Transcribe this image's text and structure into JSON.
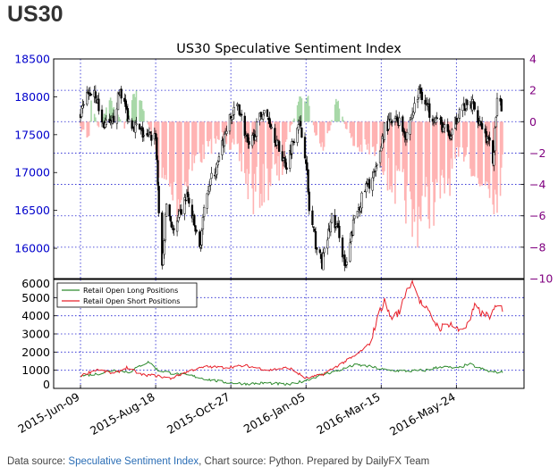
{
  "page": {
    "heading": "US30",
    "footer": {
      "prefix": "Data source: ",
      "link1": "Speculative Sentiment Index",
      "middle": ", Chart source: Python. Prepared by DailyFX Team"
    }
  },
  "colors": {
    "price_up": "#ffffff",
    "price_down": "#000000",
    "positive_ssi": "#a8d8a8",
    "negative_ssi": "#ffb3b3",
    "long_line": "#2e8b2e",
    "short_line": "#e8202a",
    "grid": "#1f1fd0",
    "left_axis_text": "#0000cc",
    "right_axis_text": "#800080"
  },
  "chart_data": [
    {
      "type": "candlestick",
      "title": "US30 Speculative Sentiment Index",
      "y_left": {
        "ticks": [
          16000,
          16500,
          17000,
          17500,
          18000,
          18500
        ],
        "range": [
          15600,
          18500
        ]
      },
      "y_right": {
        "ticks": [
          -10,
          -8,
          -6,
          -4,
          -2,
          0,
          2,
          4
        ],
        "range": [
          -10,
          4
        ]
      },
      "x_range": [
        "2015-05-15",
        "2016-07-26"
      ],
      "x_ticks": [
        "2015-Jun-09",
        "2015-Aug-18",
        "2015-Oct-27",
        "2016-Jan-05",
        "2016-Mar-15",
        "2016-May-24"
      ],
      "grid": true,
      "price_anchors": [
        [
          "2015-06-09",
          17750
        ],
        [
          "2015-06-15",
          18000
        ],
        [
          "2015-06-22",
          18100
        ],
        [
          "2015-06-29",
          17650
        ],
        [
          "2015-07-08",
          17600
        ],
        [
          "2015-07-16",
          18100
        ],
        [
          "2015-07-24",
          17700
        ],
        [
          "2015-08-03",
          17550
        ],
        [
          "2015-08-10",
          17450
        ],
        [
          "2015-08-18",
          17500
        ],
        [
          "2015-08-21",
          16500
        ],
        [
          "2015-08-24",
          15700
        ],
        [
          "2015-08-28",
          16600
        ],
        [
          "2015-09-04",
          16200
        ],
        [
          "2015-09-16",
          16700
        ],
        [
          "2015-09-28",
          16000
        ],
        [
          "2015-10-05",
          16800
        ],
        [
          "2015-10-15",
          17100
        ],
        [
          "2015-10-23",
          17600
        ],
        [
          "2015-11-03",
          17900
        ],
        [
          "2015-11-13",
          17300
        ],
        [
          "2015-11-25",
          17800
        ],
        [
          "2015-12-02",
          17700
        ],
        [
          "2015-12-11",
          17300
        ],
        [
          "2015-12-18",
          17100
        ],
        [
          "2015-12-29",
          17700
        ],
        [
          "2016-01-05",
          17200
        ],
        [
          "2016-01-08",
          16500
        ],
        [
          "2016-01-15",
          16000
        ],
        [
          "2016-01-20",
          15800
        ],
        [
          "2016-01-29",
          16400
        ],
        [
          "2016-02-05",
          16200
        ],
        [
          "2016-02-11",
          15700
        ],
        [
          "2016-02-19",
          16400
        ],
        [
          "2016-03-01",
          16800
        ],
        [
          "2016-03-10",
          17000
        ],
        [
          "2016-03-18",
          17600
        ],
        [
          "2016-03-31",
          17700
        ],
        [
          "2016-04-07",
          17500
        ],
        [
          "2016-04-20",
          18100
        ],
        [
          "2016-04-29",
          17800
        ],
        [
          "2016-05-06",
          17700
        ],
        [
          "2016-05-19",
          17450
        ],
        [
          "2016-05-27",
          17850
        ],
        [
          "2016-06-08",
          17900
        ],
        [
          "2016-06-16",
          17650
        ],
        [
          "2016-06-24",
          17350
        ],
        [
          "2016-06-27",
          17150
        ],
        [
          "2016-07-01",
          17900
        ],
        [
          "2016-07-05",
          17850
        ]
      ],
      "ssi_anchors": [
        [
          "2015-06-09",
          -0.5
        ],
        [
          "2015-06-17",
          -1.2
        ],
        [
          "2015-06-19",
          1.3
        ],
        [
          "2015-06-26",
          -0.5
        ],
        [
          "2015-07-06",
          1.5
        ],
        [
          "2015-07-10",
          1.0
        ],
        [
          "2015-07-20",
          -0.4
        ],
        [
          "2015-07-28",
          2.1
        ],
        [
          "2015-08-06",
          1.1
        ],
        [
          "2015-08-14",
          -1.0
        ],
        [
          "2015-08-25",
          -4.5
        ],
        [
          "2015-09-08",
          -6.0
        ],
        [
          "2015-09-22",
          -3.0
        ],
        [
          "2015-10-06",
          -2.0
        ],
        [
          "2015-10-20",
          -1.0
        ],
        [
          "2015-11-03",
          -2.5
        ],
        [
          "2015-11-16",
          -5.5
        ],
        [
          "2015-11-30",
          -4.5
        ],
        [
          "2015-12-14",
          -3.5
        ],
        [
          "2015-12-21",
          -0.6
        ],
        [
          "2015-12-30",
          1.4
        ],
        [
          "2016-01-07",
          1.5
        ],
        [
          "2016-01-14",
          -1.0
        ],
        [
          "2016-01-22",
          -2.0
        ],
        [
          "2016-02-03",
          1.6
        ],
        [
          "2016-02-11",
          -0.4
        ],
        [
          "2016-02-19",
          -1.8
        ],
        [
          "2016-03-01",
          -2.0
        ],
        [
          "2016-03-14",
          -2.5
        ],
        [
          "2016-03-24",
          -4.5
        ],
        [
          "2016-04-06",
          -5.5
        ],
        [
          "2016-04-14",
          -8.0
        ],
        [
          "2016-04-22",
          -6.0
        ],
        [
          "2016-05-04",
          -6.0
        ],
        [
          "2016-05-16",
          -4.5
        ],
        [
          "2016-05-24",
          -3.0
        ],
        [
          "2016-06-03",
          -2.0
        ],
        [
          "2016-06-14",
          -5.0
        ],
        [
          "2016-06-21",
          -4.0
        ],
        [
          "2016-06-30",
          -5.5
        ],
        [
          "2016-07-06",
          -3.5
        ]
      ]
    },
    {
      "type": "line",
      "y_range": [
        0,
        6000
      ],
      "y_ticks": [
        0,
        1000,
        2000,
        3000,
        4000,
        5000,
        6000
      ],
      "x_ticks": [
        "2015-Jun-09",
        "2015-Aug-18",
        "2015-Oct-27",
        "2016-Jan-05",
        "2016-Mar-15",
        "2016-May-24"
      ],
      "grid": true,
      "legend_position": "top-left",
      "series": [
        {
          "name": "Retail Open Long Positions",
          "points": [
            [
              "2015-06-09",
              700
            ],
            [
              "2015-06-25",
              800
            ],
            [
              "2015-07-10",
              1000
            ],
            [
              "2015-07-25",
              900
            ],
            [
              "2015-08-05",
              1300
            ],
            [
              "2015-08-12",
              1450
            ],
            [
              "2015-08-20",
              1000
            ],
            [
              "2015-09-05",
              800
            ],
            [
              "2015-09-20",
              700
            ],
            [
              "2015-10-05",
              500
            ],
            [
              "2015-10-20",
              350
            ],
            [
              "2015-11-10",
              250
            ],
            [
              "2015-12-01",
              300
            ],
            [
              "2015-12-20",
              200
            ],
            [
              "2016-01-05",
              450
            ],
            [
              "2016-01-20",
              750
            ],
            [
              "2016-02-05",
              1000
            ],
            [
              "2016-02-20",
              1300
            ],
            [
              "2016-03-05",
              1200
            ],
            [
              "2016-03-20",
              1000
            ],
            [
              "2016-04-10",
              950
            ],
            [
              "2016-04-25",
              1000
            ],
            [
              "2016-05-10",
              1200
            ],
            [
              "2016-05-25",
              1100
            ],
            [
              "2016-06-05",
              1350
            ],
            [
              "2016-06-15",
              1100
            ],
            [
              "2016-06-25",
              900
            ],
            [
              "2016-07-06",
              900
            ]
          ]
        },
        {
          "name": "Retail Open Short Positions",
          "points": [
            [
              "2015-06-09",
              700
            ],
            [
              "2015-06-25",
              1050
            ],
            [
              "2015-07-10",
              800
            ],
            [
              "2015-07-22",
              1150
            ],
            [
              "2015-08-05",
              750
            ],
            [
              "2015-08-18",
              700
            ],
            [
              "2015-09-01",
              550
            ],
            [
              "2015-09-20",
              1000
            ],
            [
              "2015-10-05",
              1200
            ],
            [
              "2015-10-20",
              1150
            ],
            [
              "2015-11-10",
              1250
            ],
            [
              "2015-12-01",
              1000
            ],
            [
              "2015-12-20",
              1150
            ],
            [
              "2016-01-05",
              550
            ],
            [
              "2016-01-20",
              750
            ],
            [
              "2016-02-05",
              1300
            ],
            [
              "2016-02-20",
              1800
            ],
            [
              "2016-03-05",
              2500
            ],
            [
              "2016-03-12",
              4000
            ],
            [
              "2016-03-18",
              4800
            ],
            [
              "2016-03-24",
              3900
            ],
            [
              "2016-04-01",
              4200
            ],
            [
              "2016-04-08",
              5500
            ],
            [
              "2016-04-14",
              5900
            ],
            [
              "2016-04-20",
              4800
            ],
            [
              "2016-04-28",
              4200
            ],
            [
              "2016-05-08",
              3300
            ],
            [
              "2016-05-18",
              3600
            ],
            [
              "2016-05-26",
              3200
            ],
            [
              "2016-06-04",
              3500
            ],
            [
              "2016-06-10",
              4500
            ],
            [
              "2016-06-17",
              4100
            ],
            [
              "2016-06-24",
              4000
            ],
            [
              "2016-07-01",
              4500
            ],
            [
              "2016-07-06",
              4400
            ]
          ]
        }
      ]
    }
  ]
}
